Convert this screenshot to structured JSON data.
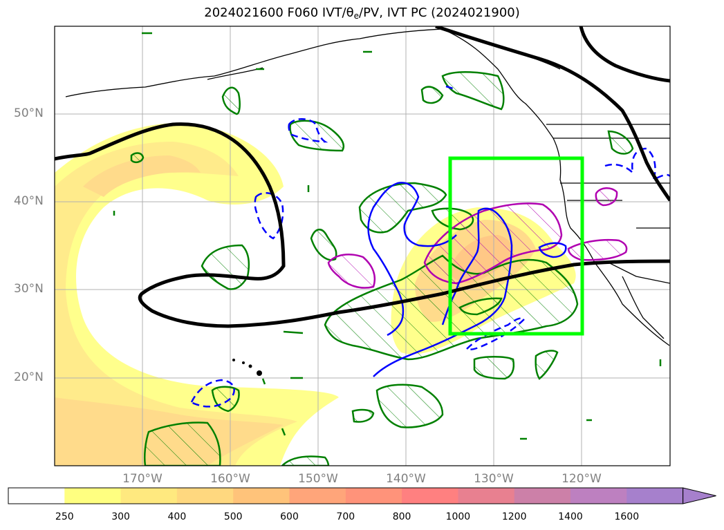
{
  "title": {
    "prefix": "2024021600 F060 IVT/θ",
    "sub": "e",
    "suffix": "/PV, IVT PC (2024021900)"
  },
  "map": {
    "lat_labels": [
      "50°N",
      "40°N",
      "30°N",
      "20°N"
    ],
    "lon_labels": [
      "170°W",
      "160°W",
      "150°W",
      "140°W",
      "130°W",
      "120°W"
    ],
    "lat_range": [
      10,
      60
    ],
    "lon_range": [
      -180,
      -110
    ],
    "gridlines": true,
    "highlight_box": {
      "lon_range": [
        -135,
        -120
      ],
      "lat_range": [
        25,
        45
      ],
      "color": "#00ff00"
    },
    "contour_colors": {
      "theta_e": "#000000",
      "ivt_pc_green": "#008000",
      "pv_blue": "#0000ff",
      "ivt_magenta": "#b000b0"
    }
  },
  "colorbar": {
    "levels": [
      "250",
      "300",
      "400",
      "500",
      "600",
      "700",
      "800",
      "1000",
      "1200",
      "1400",
      "1600"
    ],
    "colors": [
      "#ffffff",
      "#ffff80",
      "#ffe97f",
      "#ffd87f",
      "#ffc37a",
      "#ffa57a",
      "#ff937a",
      "#ff8080",
      "#e88090",
      "#cc80a8",
      "#bd80c0",
      "#a680cc"
    ],
    "extend": "max"
  }
}
